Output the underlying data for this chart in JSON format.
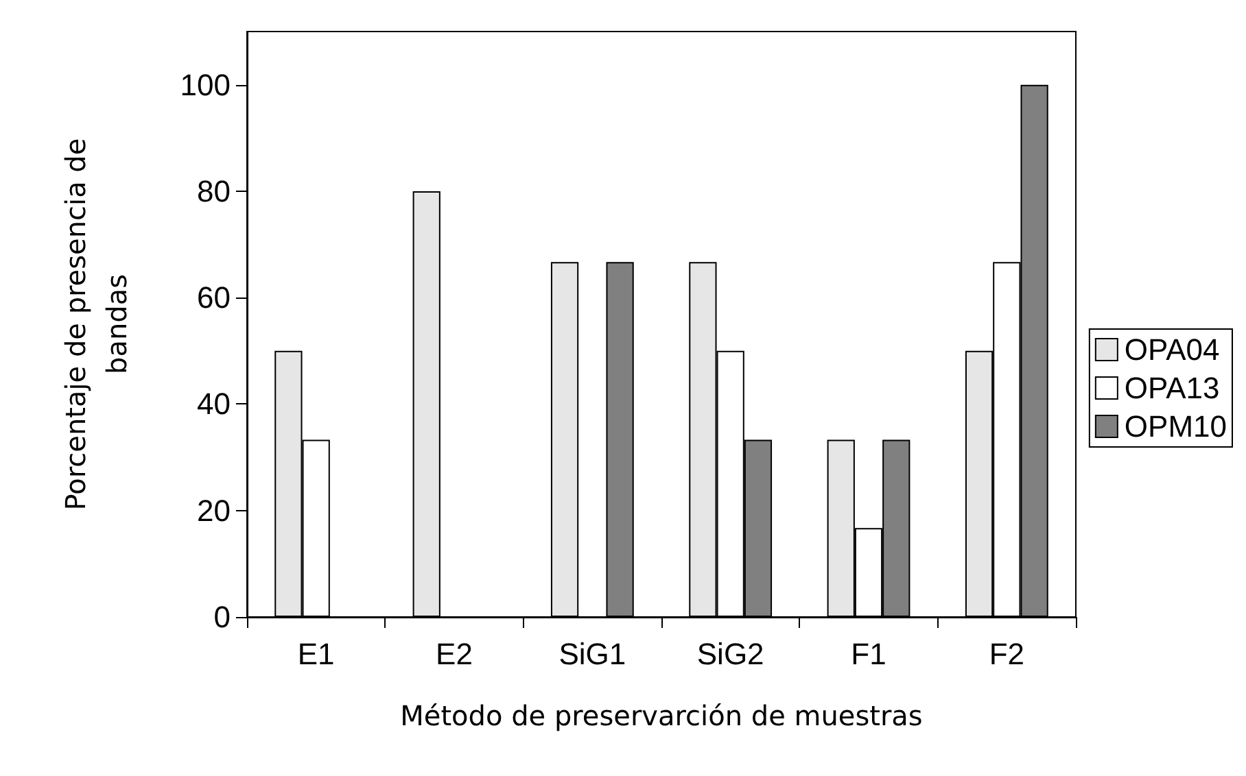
{
  "chart_data": {
    "type": "bar",
    "xlabel": "Método de preservarción de muestras",
    "ylabel": "Porcentaje de presencia de bandas",
    "categories": [
      "E1",
      "E2",
      "SiG1",
      "SiG2",
      "F1",
      "F2"
    ],
    "series": [
      {
        "name": "OPA04",
        "color": "#e6e6e6",
        "values": [
          50,
          80,
          66.7,
          66.7,
          33.3,
          50
        ]
      },
      {
        "name": "OPA13",
        "color": "#ffffff",
        "values": [
          33.3,
          null,
          null,
          50,
          16.7,
          66.7
        ]
      },
      {
        "name": "OPM10",
        "color": "#808080",
        "values": [
          null,
          null,
          66.7,
          33.3,
          33.3,
          100
        ]
      }
    ],
    "ylim": [
      0,
      110
    ],
    "yticks": [
      0,
      20,
      40,
      60,
      80,
      100
    ],
    "grid": false,
    "legend": "right"
  }
}
